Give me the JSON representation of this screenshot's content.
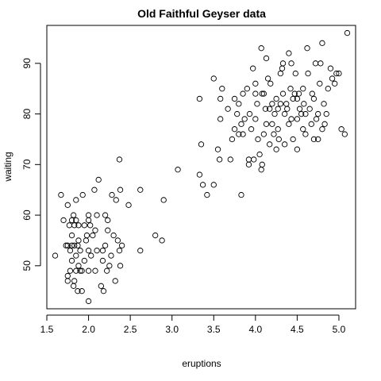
{
  "chart_data": {
    "type": "scatter",
    "title": "Old Faithful Geyser data",
    "xlabel": "eruptions",
    "ylabel": "waiting",
    "xlim": [
      1.5,
      5.2
    ],
    "ylim": [
      41.5,
      97.5
    ],
    "xticks": [
      1.5,
      2.0,
      2.5,
      3.0,
      3.5,
      4.0,
      4.5,
      5.0
    ],
    "xtick_labels": [
      "1.5",
      "2.0",
      "2.5",
      "3.0",
      "3.5",
      "4.0",
      "4.5",
      "5.0"
    ],
    "yticks": [
      50,
      60,
      70,
      80,
      90
    ],
    "ytick_labels": [
      "50",
      "60",
      "70",
      "80",
      "90"
    ],
    "grid": false,
    "legend": "none",
    "marker": "open-circle",
    "series": [
      {
        "color": "#000000",
        "points": [
          [
            1.6,
            52
          ],
          [
            1.67,
            64
          ],
          [
            1.7,
            59
          ],
          [
            1.73,
            54
          ],
          [
            1.75,
            48
          ],
          [
            1.75,
            47
          ],
          [
            1.75,
            54
          ],
          [
            1.75,
            62
          ],
          [
            1.77,
            58
          ],
          [
            1.78,
            53
          ],
          [
            1.78,
            49
          ],
          [
            1.8,
            51
          ],
          [
            1.8,
            54
          ],
          [
            1.8,
            59
          ],
          [
            1.8,
            56
          ],
          [
            1.82,
            46
          ],
          [
            1.82,
            60
          ],
          [
            1.83,
            54
          ],
          [
            1.83,
            58
          ],
          [
            1.83,
            47
          ],
          [
            1.85,
            63
          ],
          [
            1.85,
            59
          ],
          [
            1.85,
            49
          ],
          [
            1.85,
            52
          ],
          [
            1.87,
            54
          ],
          [
            1.87,
            45
          ],
          [
            1.88,
            58
          ],
          [
            1.88,
            50
          ],
          [
            1.88,
            55
          ],
          [
            1.9,
            53
          ],
          [
            1.9,
            49
          ],
          [
            1.92,
            45
          ],
          [
            1.92,
            49
          ],
          [
            1.93,
            64
          ],
          [
            1.95,
            51
          ],
          [
            1.95,
            58
          ],
          [
            1.97,
            55
          ],
          [
            1.98,
            56
          ],
          [
            2.0,
            43
          ],
          [
            2.0,
            49
          ],
          [
            2.0,
            53
          ],
          [
            2.0,
            59
          ],
          [
            2.0,
            60
          ],
          [
            2.02,
            58
          ],
          [
            2.03,
            52
          ],
          [
            2.05,
            56
          ],
          [
            2.07,
            65
          ],
          [
            2.08,
            57
          ],
          [
            2.08,
            49
          ],
          [
            2.1,
            53
          ],
          [
            2.1,
            60
          ],
          [
            2.12,
            67
          ],
          [
            2.15,
            46
          ],
          [
            2.17,
            53
          ],
          [
            2.17,
            51
          ],
          [
            2.18,
            45
          ],
          [
            2.2,
            60
          ],
          [
            2.2,
            54
          ],
          [
            2.22,
            49
          ],
          [
            2.23,
            57
          ],
          [
            2.23,
            59
          ],
          [
            2.25,
            50
          ],
          [
            2.27,
            52
          ],
          [
            2.28,
            64
          ],
          [
            2.3,
            56
          ],
          [
            2.32,
            47
          ],
          [
            2.33,
            63
          ],
          [
            2.35,
            55
          ],
          [
            2.37,
            71
          ],
          [
            2.37,
            53
          ],
          [
            2.38,
            65
          ],
          [
            2.38,
            50
          ],
          [
            2.4,
            54
          ],
          [
            2.48,
            62
          ],
          [
            2.62,
            53
          ],
          [
            2.62,
            65
          ],
          [
            2.8,
            56
          ],
          [
            2.88,
            55
          ],
          [
            2.9,
            63
          ],
          [
            3.07,
            69
          ],
          [
            3.33,
            83
          ],
          [
            3.33,
            68
          ],
          [
            3.35,
            74
          ],
          [
            3.37,
            66
          ],
          [
            3.42,
            64
          ],
          [
            3.5,
            66
          ],
          [
            3.5,
            87
          ],
          [
            3.55,
            73
          ],
          [
            3.57,
            71
          ],
          [
            3.58,
            79
          ],
          [
            3.58,
            83
          ],
          [
            3.6,
            85
          ],
          [
            3.67,
            81
          ],
          [
            3.7,
            71
          ],
          [
            3.72,
            75
          ],
          [
            3.75,
            83
          ],
          [
            3.75,
            77
          ],
          [
            3.78,
            80
          ],
          [
            3.8,
            82
          ],
          [
            3.8,
            76
          ],
          [
            3.83,
            78
          ],
          [
            3.83,
            64
          ],
          [
            3.85,
            76
          ],
          [
            3.85,
            84
          ],
          [
            3.87,
            79
          ],
          [
            3.9,
            85
          ],
          [
            3.92,
            71
          ],
          [
            3.92,
            70
          ],
          [
            3.93,
            80
          ],
          [
            3.95,
            77
          ],
          [
            3.97,
            89
          ],
          [
            3.98,
            71
          ],
          [
            4.0,
            86
          ],
          [
            4.0,
            84
          ],
          [
            4.0,
            79
          ],
          [
            4.02,
            82
          ],
          [
            4.03,
            75
          ],
          [
            4.05,
            72
          ],
          [
            4.07,
            93
          ],
          [
            4.07,
            69
          ],
          [
            4.08,
            84
          ],
          [
            4.08,
            70
          ],
          [
            4.1,
            76
          ],
          [
            4.1,
            84
          ],
          [
            4.12,
            81
          ],
          [
            4.13,
            91
          ],
          [
            4.13,
            78
          ],
          [
            4.15,
            87
          ],
          [
            4.17,
            81
          ],
          [
            4.17,
            74
          ],
          [
            4.18,
            86
          ],
          [
            4.2,
            78
          ],
          [
            4.2,
            82
          ],
          [
            4.22,
            76
          ],
          [
            4.23,
            80
          ],
          [
            4.25,
            83
          ],
          [
            4.25,
            73
          ],
          [
            4.27,
            81
          ],
          [
            4.27,
            77
          ],
          [
            4.28,
            75
          ],
          [
            4.3,
            82
          ],
          [
            4.3,
            88
          ],
          [
            4.32,
            89
          ],
          [
            4.33,
            84
          ],
          [
            4.33,
            90
          ],
          [
            4.35,
            80
          ],
          [
            4.35,
            74
          ],
          [
            4.37,
            82
          ],
          [
            4.38,
            81
          ],
          [
            4.4,
            78
          ],
          [
            4.4,
            92
          ],
          [
            4.42,
            85
          ],
          [
            4.43,
            79
          ],
          [
            4.43,
            90
          ],
          [
            4.45,
            83
          ],
          [
            4.45,
            75
          ],
          [
            4.47,
            84
          ],
          [
            4.48,
            88
          ],
          [
            4.5,
            79
          ],
          [
            4.5,
            83
          ],
          [
            4.5,
            73
          ],
          [
            4.52,
            84
          ],
          [
            4.53,
            81
          ],
          [
            4.55,
            80
          ],
          [
            4.57,
            85
          ],
          [
            4.57,
            77
          ],
          [
            4.58,
            82
          ],
          [
            4.6,
            76
          ],
          [
            4.6,
            80
          ],
          [
            4.62,
            93
          ],
          [
            4.63,
            88
          ],
          [
            4.65,
            81
          ],
          [
            4.67,
            78
          ],
          [
            4.68,
            84
          ],
          [
            4.7,
            83
          ],
          [
            4.7,
            75
          ],
          [
            4.72,
            90
          ],
          [
            4.73,
            79
          ],
          [
            4.75,
            80
          ],
          [
            4.75,
            75
          ],
          [
            4.77,
            86
          ],
          [
            4.78,
            90
          ],
          [
            4.8,
            94
          ],
          [
            4.8,
            77
          ],
          [
            4.82,
            82
          ],
          [
            4.83,
            78
          ],
          [
            4.85,
            80
          ],
          [
            4.87,
            85
          ],
          [
            4.9,
            89
          ],
          [
            4.92,
            87
          ],
          [
            4.95,
            86
          ],
          [
            4.97,
            88
          ],
          [
            5.0,
            88
          ],
          [
            5.03,
            77
          ],
          [
            5.07,
            76
          ],
          [
            5.1,
            96
          ]
        ]
      }
    ]
  }
}
